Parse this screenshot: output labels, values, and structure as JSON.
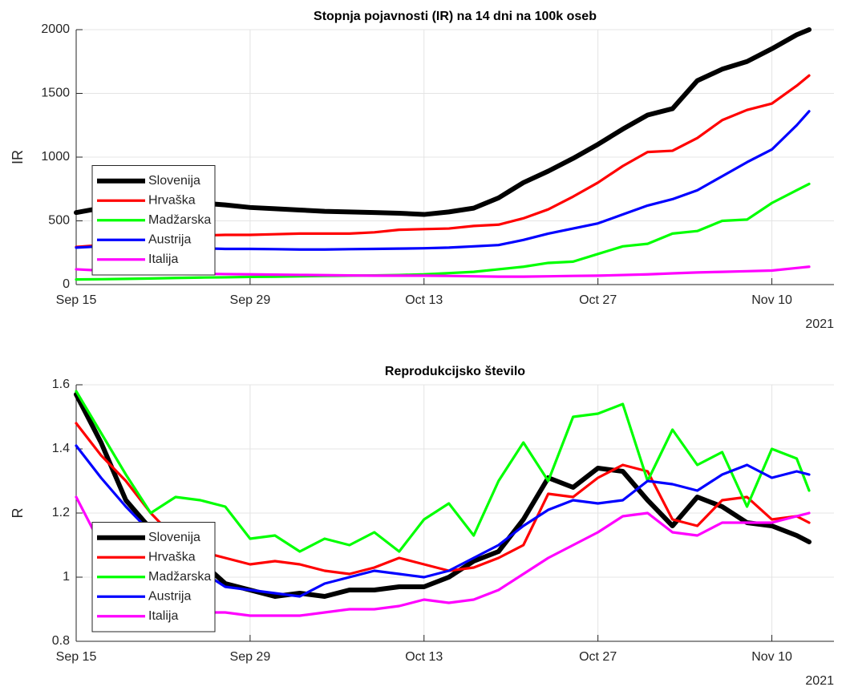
{
  "chart_data": [
    {
      "type": "line",
      "title": "Stopnja pojavnosti (IR) na 14 dni na 100k oseb",
      "y_label": "IR",
      "x_secondary_label": "2021",
      "x": [
        "2021-09-15",
        "2021-09-17",
        "2021-09-19",
        "2021-09-21",
        "2021-09-23",
        "2021-09-25",
        "2021-09-27",
        "2021-09-29",
        "2021-10-01",
        "2021-10-03",
        "2021-10-05",
        "2021-10-07",
        "2021-10-09",
        "2021-10-11",
        "2021-10-13",
        "2021-10-15",
        "2021-10-17",
        "2021-10-19",
        "2021-10-21",
        "2021-10-23",
        "2021-10-25",
        "2021-10-27",
        "2021-10-29",
        "2021-10-31",
        "2021-11-02",
        "2021-11-04",
        "2021-11-06",
        "2021-11-08",
        "2021-11-10",
        "2021-11-12",
        "2021-11-13"
      ],
      "series": [
        {
          "name": "Slovenija",
          "color": "#000000",
          "values": [
            565,
            600,
            640,
            660,
            650,
            640,
            625,
            605,
            595,
            585,
            575,
            570,
            565,
            560,
            550,
            570,
            600,
            680,
            800,
            890,
            990,
            1100,
            1220,
            1330,
            1380,
            1600,
            1690,
            1750,
            1850,
            1960,
            2000
          ]
        },
        {
          "name": "Hrvaška",
          "color": "#ff0000",
          "values": [
            295,
            310,
            340,
            360,
            375,
            385,
            390,
            390,
            395,
            400,
            400,
            400,
            410,
            430,
            435,
            440,
            460,
            470,
            520,
            590,
            690,
            800,
            930,
            1040,
            1050,
            1150,
            1290,
            1370,
            1420,
            1560,
            1640
          ]
        },
        {
          "name": "Madžarska",
          "color": "#00ff00",
          "values": [
            40,
            42,
            45,
            48,
            52,
            55,
            57,
            60,
            62,
            65,
            68,
            70,
            72,
            75,
            80,
            90,
            100,
            120,
            140,
            170,
            180,
            240,
            300,
            320,
            400,
            420,
            500,
            510,
            640,
            740,
            790
          ]
        },
        {
          "name": "Austrija",
          "color": "#0000ff",
          "values": [
            290,
            300,
            295,
            290,
            285,
            285,
            280,
            280,
            278,
            275,
            275,
            278,
            280,
            282,
            285,
            290,
            300,
            310,
            350,
            400,
            440,
            480,
            550,
            620,
            670,
            740,
            850,
            960,
            1060,
            1250,
            1360
          ]
        },
        {
          "name": "Italija",
          "color": "#ff00ff",
          "values": [
            120,
            110,
            100,
            95,
            90,
            85,
            82,
            80,
            78,
            76,
            74,
            72,
            70,
            70,
            70,
            68,
            65,
            62,
            62,
            65,
            68,
            70,
            75,
            80,
            88,
            95,
            100,
            105,
            110,
            130,
            140
          ]
        }
      ],
      "xlim": [
        "2021-09-15",
        "2021-11-15"
      ],
      "xticks": [
        {
          "value": "2021-09-15",
          "label": "Sep 15"
        },
        {
          "value": "2021-09-29",
          "label": "Sep 29"
        },
        {
          "value": "2021-10-13",
          "label": "Oct 13"
        },
        {
          "value": "2021-10-27",
          "label": "Oct 27"
        },
        {
          "value": "2021-11-10",
          "label": "Nov 10"
        }
      ],
      "ylim": [
        0,
        2000
      ],
      "yticks": [
        0,
        500,
        1000,
        1500,
        2000
      ],
      "grid": true,
      "legend": "lower left"
    },
    {
      "type": "line",
      "title": "Reprodukcijsko število",
      "y_label": "R",
      "x_secondary_label": "2021",
      "x": [
        "2021-09-15",
        "2021-09-17",
        "2021-09-19",
        "2021-09-21",
        "2021-09-23",
        "2021-09-25",
        "2021-09-27",
        "2021-09-29",
        "2021-10-01",
        "2021-10-03",
        "2021-10-05",
        "2021-10-07",
        "2021-10-09",
        "2021-10-11",
        "2021-10-13",
        "2021-10-15",
        "2021-10-17",
        "2021-10-19",
        "2021-10-21",
        "2021-10-23",
        "2021-10-25",
        "2021-10-27",
        "2021-10-29",
        "2021-10-31",
        "2021-11-02",
        "2021-11-04",
        "2021-11-06",
        "2021-11-08",
        "2021-11-10",
        "2021-11-12",
        "2021-11-13"
      ],
      "series": [
        {
          "name": "Slovenija",
          "color": "#000000",
          "values": [
            1.57,
            1.42,
            1.24,
            1.15,
            1.1,
            1.05,
            0.98,
            0.96,
            0.94,
            0.95,
            0.94,
            0.96,
            0.96,
            0.97,
            0.97,
            1.0,
            1.05,
            1.08,
            1.18,
            1.31,
            1.28,
            1.34,
            1.33,
            1.24,
            1.16,
            1.25,
            1.22,
            1.17,
            1.16,
            1.13,
            1.11
          ]
        },
        {
          "name": "Hrvaška",
          "color": "#ff0000",
          "values": [
            1.48,
            1.38,
            1.3,
            1.2,
            1.12,
            1.08,
            1.06,
            1.04,
            1.05,
            1.04,
            1.02,
            1.01,
            1.03,
            1.06,
            1.04,
            1.02,
            1.03,
            1.06,
            1.1,
            1.26,
            1.25,
            1.31,
            1.35,
            1.33,
            1.18,
            1.16,
            1.24,
            1.25,
            1.18,
            1.19,
            1.17
          ]
        },
        {
          "name": "Madžarska",
          "color": "#00ff00",
          "values": [
            1.58,
            1.45,
            1.32,
            1.2,
            1.25,
            1.24,
            1.22,
            1.12,
            1.13,
            1.08,
            1.12,
            1.1,
            1.14,
            1.08,
            1.18,
            1.23,
            1.13,
            1.3,
            1.42,
            1.3,
            1.5,
            1.51,
            1.54,
            1.3,
            1.46,
            1.35,
            1.39,
            1.22,
            1.4,
            1.37,
            1.27
          ]
        },
        {
          "name": "Austrija",
          "color": "#0000ff",
          "values": [
            1.41,
            1.31,
            1.22,
            1.14,
            1.08,
            1.02,
            0.97,
            0.96,
            0.95,
            0.94,
            0.98,
            1.0,
            1.02,
            1.01,
            1.0,
            1.02,
            1.06,
            1.1,
            1.16,
            1.21,
            1.24,
            1.23,
            1.24,
            1.3,
            1.29,
            1.27,
            1.32,
            1.35,
            1.31,
            1.33,
            1.32
          ]
        },
        {
          "name": "Italija",
          "color": "#ff00ff",
          "values": [
            1.25,
            1.1,
            0.98,
            0.93,
            0.9,
            0.89,
            0.89,
            0.88,
            0.88,
            0.88,
            0.89,
            0.9,
            0.9,
            0.91,
            0.93,
            0.92,
            0.93,
            0.96,
            1.01,
            1.06,
            1.1,
            1.14,
            1.19,
            1.2,
            1.14,
            1.13,
            1.17,
            1.17,
            1.17,
            1.19,
            1.2
          ]
        }
      ],
      "xlim": [
        "2021-09-15",
        "2021-11-15"
      ],
      "xticks": [
        {
          "value": "2021-09-15",
          "label": "Sep 15"
        },
        {
          "value": "2021-09-29",
          "label": "Sep 29"
        },
        {
          "value": "2021-10-13",
          "label": "Oct 13"
        },
        {
          "value": "2021-10-27",
          "label": "Oct 27"
        },
        {
          "value": "2021-11-10",
          "label": "Nov 10"
        }
      ],
      "ylim": [
        0.8,
        1.6
      ],
      "yticks": [
        0.8,
        1,
        1.2,
        1.4,
        1.6
      ],
      "grid": true,
      "legend": "lower left"
    }
  ]
}
